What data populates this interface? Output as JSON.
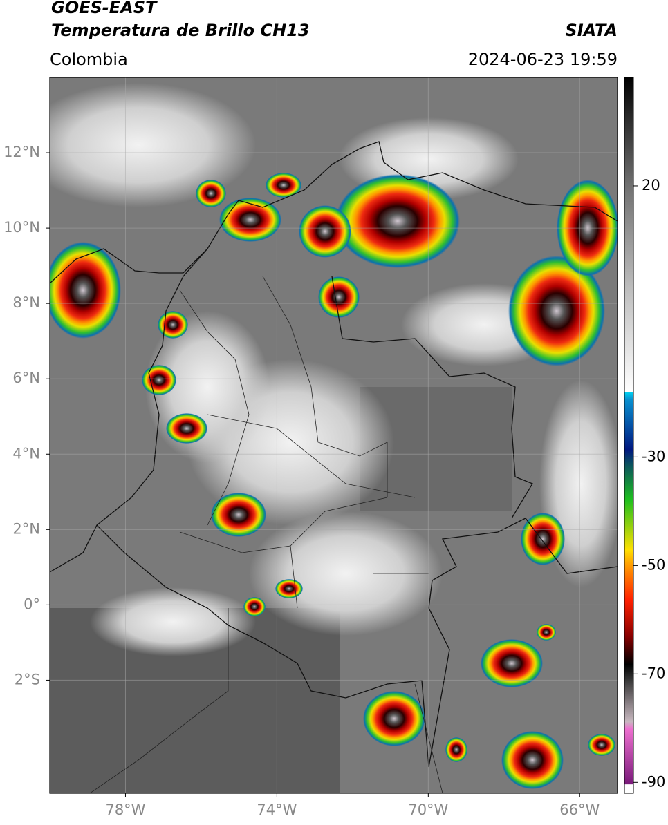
{
  "header": {
    "title": "GOES-EAST",
    "subtitle": "Temperatura de Brillo CH13",
    "source": "SIATA",
    "region": "Colombia",
    "datetime": "2024-06-23 19:59"
  },
  "map": {
    "xlim": [
      -80,
      -65
    ],
    "ylim": [
      -5,
      14
    ],
    "xticks": [
      {
        "value": -78,
        "label": "78°W"
      },
      {
        "value": -74,
        "label": "74°W"
      },
      {
        "value": -70,
        "label": "70°W"
      },
      {
        "value": -66,
        "label": "66°W"
      }
    ],
    "yticks": [
      {
        "value": 12,
        "label": "12°N"
      },
      {
        "value": 10,
        "label": "10°N"
      },
      {
        "value": 8,
        "label": "8°N"
      },
      {
        "value": 6,
        "label": "6°N"
      },
      {
        "value": 4,
        "label": "4°N"
      },
      {
        "value": 2,
        "label": "2°N"
      },
      {
        "value": 0,
        "label": "0°"
      },
      {
        "value": -2,
        "label": "2°S"
      }
    ],
    "grid": true
  },
  "colorbar": {
    "lim": [
      -92,
      40
    ],
    "ticks": [
      20,
      -30,
      -50,
      -70,
      -90
    ]
  }
}
